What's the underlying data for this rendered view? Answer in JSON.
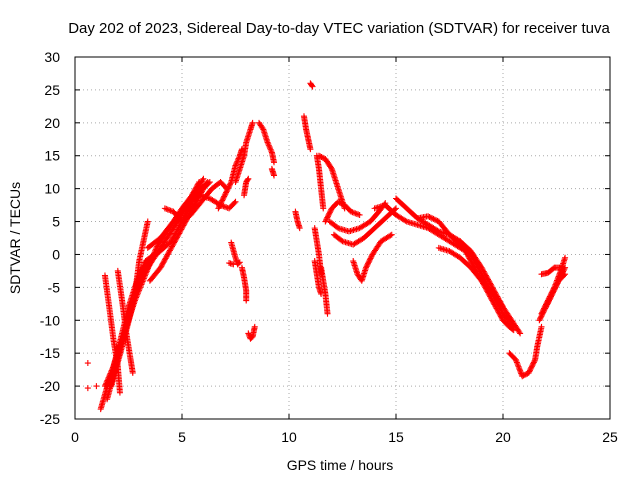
{
  "chart_data": {
    "type": "scatter",
    "title": "Day 202 of 2023, Sidereal Day-to-day VTEC variation (SDTVAR) for receiver tuva",
    "xlabel": "GPS time / hours",
    "ylabel": "SDTVAR / TECUs",
    "xlim": [
      0,
      25
    ],
    "ylim": [
      -25,
      30
    ],
    "xticks": [
      0,
      5,
      10,
      15,
      20,
      25
    ],
    "yticks": [
      -25,
      -20,
      -15,
      -10,
      -5,
      0,
      5,
      10,
      15,
      20,
      25,
      30
    ],
    "grid": true,
    "marker": "+",
    "color": "#ff0000",
    "tracks": [
      [
        [
          1.4,
          -3.2
        ],
        [
          1.6,
          -8
        ],
        [
          1.8,
          -13
        ],
        [
          2.0,
          -17
        ],
        [
          2.1,
          -21
        ]
      ],
      [
        [
          1.2,
          -23.5
        ],
        [
          1.6,
          -19
        ],
        [
          2.2,
          -13
        ],
        [
          2.8,
          -7
        ],
        [
          3.3,
          -3
        ],
        [
          3.8,
          1
        ],
        [
          4.4,
          4
        ],
        [
          5.0,
          7
        ],
        [
          5.6,
          9.5
        ],
        [
          6.0,
          11.5
        ]
      ],
      [
        [
          1.5,
          -22
        ],
        [
          2.0,
          -16
        ],
        [
          2.4,
          -11
        ],
        [
          2.8,
          -6
        ],
        [
          3.2,
          -2
        ],
        [
          3.8,
          0
        ],
        [
          4.5,
          2
        ],
        [
          5.0,
          5
        ],
        [
          5.6,
          9
        ],
        [
          6.2,
          11
        ]
      ],
      [
        [
          1.7,
          -20
        ],
        [
          2.2,
          -14
        ],
        [
          2.6,
          -9
        ],
        [
          3.0,
          -4
        ],
        [
          3.6,
          -1
        ],
        [
          4.2,
          2
        ],
        [
          4.8,
          5
        ],
        [
          5.3,
          8
        ],
        [
          5.8,
          11
        ]
      ],
      [
        [
          1.4,
          -20
        ],
        [
          1.8,
          -17
        ],
        [
          2.2,
          -12
        ],
        [
          2.5,
          -8
        ],
        [
          2.9,
          -4
        ],
        [
          3.3,
          -1
        ],
        [
          3.7,
          0
        ]
      ],
      [
        [
          2.0,
          -2.5
        ],
        [
          2.2,
          -7
        ],
        [
          2.4,
          -12
        ],
        [
          2.6,
          -16
        ],
        [
          2.7,
          -18
        ]
      ],
      [
        [
          2.8,
          -6
        ],
        [
          3.0,
          -1
        ],
        [
          3.2,
          2
        ],
        [
          3.4,
          5
        ]
      ],
      [
        [
          3.5,
          -4
        ],
        [
          4.0,
          -2
        ],
        [
          4.5,
          1
        ],
        [
          5.0,
          4
        ],
        [
          5.5,
          7
        ],
        [
          6.0,
          10
        ],
        [
          6.3,
          11
        ]
      ],
      [
        [
          4.2,
          7
        ],
        [
          4.6,
          6.5
        ],
        [
          5.0,
          5
        ],
        [
          5.4,
          6
        ],
        [
          5.9,
          8
        ],
        [
          6.4,
          10
        ],
        [
          6.8,
          11
        ],
        [
          7.1,
          10
        ]
      ],
      [
        [
          3.4,
          1
        ],
        [
          4.0,
          2.5
        ],
        [
          4.6,
          5
        ],
        [
          5.2,
          7.5
        ],
        [
          5.8,
          9
        ],
        [
          6.3,
          8.5
        ],
        [
          6.8,
          7.5
        ],
        [
          7.2,
          7
        ],
        [
          7.5,
          8
        ]
      ],
      [
        [
          7.5,
          11
        ],
        [
          7.7,
          13
        ],
        [
          7.9,
          15
        ],
        [
          8.0,
          17
        ],
        [
          8.2,
          19
        ],
        [
          8.3,
          20
        ]
      ],
      [
        [
          6.7,
          7
        ],
        [
          7.0,
          9
        ],
        [
          7.3,
          11
        ],
        [
          7.5,
          13.5
        ],
        [
          7.7,
          15
        ],
        [
          7.8,
          16
        ]
      ],
      [
        [
          7.9,
          9
        ],
        [
          8.0,
          11
        ],
        [
          8.1,
          11.5
        ]
      ],
      [
        [
          7.3,
          1.8
        ],
        [
          7.5,
          -0.5
        ],
        [
          7.6,
          -1.5
        ],
        [
          7.7,
          -1.2
        ]
      ],
      [
        [
          7.8,
          -2
        ],
        [
          7.9,
          -3.5
        ],
        [
          8.0,
          -5.5
        ],
        [
          8.0,
          -7
        ]
      ],
      [
        [
          7.2,
          -1.3
        ],
        [
          7.4,
          -1.5
        ]
      ],
      [
        [
          8.1,
          -12
        ],
        [
          8.2,
          -12.8
        ],
        [
          8.3,
          -12.5
        ],
        [
          8.4,
          -11
        ]
      ],
      [
        [
          8.6,
          20
        ],
        [
          8.8,
          19
        ],
        [
          9.0,
          17
        ],
        [
          9.2,
          15.5
        ],
        [
          9.3,
          14
        ]
      ],
      [
        [
          9.2,
          13
        ],
        [
          9.3,
          12
        ]
      ],
      [
        [
          10.3,
          6.5
        ],
        [
          10.4,
          5
        ],
        [
          10.5,
          4
        ]
      ],
      [
        [
          10.7,
          21
        ],
        [
          10.8,
          19
        ],
        [
          10.9,
          17.5
        ],
        [
          11.0,
          16
        ]
      ],
      [
        [
          11.0,
          26
        ],
        [
          11.1,
          25.5
        ]
      ],
      [
        [
          11.3,
          15
        ],
        [
          11.4,
          13
        ],
        [
          11.5,
          10
        ],
        [
          11.6,
          7
        ]
      ],
      [
        [
          11.2,
          4
        ],
        [
          11.3,
          2
        ],
        [
          11.4,
          0
        ],
        [
          11.5,
          -3
        ]
      ],
      [
        [
          11.5,
          -2
        ],
        [
          11.6,
          -4
        ],
        [
          11.7,
          -6
        ],
        [
          11.8,
          -9
        ]
      ],
      [
        [
          11.2,
          -1
        ],
        [
          11.3,
          -3
        ],
        [
          11.4,
          -5
        ],
        [
          11.5,
          -6
        ]
      ],
      [
        [
          11.4,
          15
        ],
        [
          11.7,
          14.5
        ],
        [
          12.0,
          13
        ],
        [
          12.2,
          11
        ],
        [
          12.4,
          9
        ],
        [
          12.6,
          7
        ]
      ],
      [
        [
          11.7,
          5
        ],
        [
          12.0,
          7
        ],
        [
          12.3,
          8
        ],
        [
          12.6,
          7.5
        ],
        [
          12.9,
          6.5
        ],
        [
          13.3,
          6
        ]
      ],
      [
        [
          11.9,
          5
        ],
        [
          12.3,
          4
        ],
        [
          12.8,
          3.5
        ],
        [
          13.3,
          4
        ],
        [
          13.8,
          5
        ],
        [
          14.2,
          6.5
        ],
        [
          14.5,
          7.8
        ]
      ],
      [
        [
          12.1,
          3
        ],
        [
          12.5,
          2
        ],
        [
          13.0,
          1.5
        ],
        [
          13.5,
          2.5
        ],
        [
          14.0,
          4
        ],
        [
          14.5,
          5.5
        ],
        [
          15.0,
          7
        ]
      ],
      [
        [
          13.0,
          -1
        ],
        [
          13.2,
          -3
        ],
        [
          13.4,
          -4
        ],
        [
          13.6,
          -2
        ],
        [
          13.9,
          0
        ],
        [
          14.3,
          2
        ],
        [
          14.8,
          3
        ]
      ],
      [
        [
          14.0,
          7
        ],
        [
          14.5,
          7.5
        ],
        [
          15.0,
          6
        ],
        [
          15.5,
          5
        ],
        [
          16.0,
          4.5
        ],
        [
          16.5,
          4
        ],
        [
          17.0,
          3
        ],
        [
          17.5,
          2
        ],
        [
          18.0,
          1
        ],
        [
          18.5,
          0
        ]
      ],
      [
        [
          15.0,
          8.5
        ],
        [
          15.5,
          7
        ],
        [
          16.0,
          5.5
        ],
        [
          16.5,
          4.5
        ],
        [
          17.0,
          3.5
        ],
        [
          17.5,
          3
        ],
        [
          18.0,
          2
        ],
        [
          18.5,
          0.5
        ],
        [
          19.0,
          -2
        ],
        [
          19.5,
          -5
        ],
        [
          20.0,
          -8
        ],
        [
          20.4,
          -10
        ],
        [
          20.8,
          -12
        ]
      ],
      [
        [
          16.0,
          5.5
        ],
        [
          16.5,
          5.8
        ],
        [
          17.0,
          5
        ],
        [
          17.5,
          3
        ],
        [
          18.0,
          1.5
        ],
        [
          18.5,
          0
        ],
        [
          19.0,
          -3
        ],
        [
          19.5,
          -6
        ],
        [
          20.0,
          -9
        ],
        [
          20.5,
          -11
        ]
      ],
      [
        [
          17.0,
          1
        ],
        [
          17.5,
          0.5
        ],
        [
          18.0,
          -0.5
        ],
        [
          18.5,
          -2
        ],
        [
          19.0,
          -4
        ],
        [
          19.5,
          -7
        ],
        [
          20.0,
          -10
        ],
        [
          20.3,
          -11
        ],
        [
          20.5,
          -11.5
        ]
      ],
      [
        [
          18.0,
          2
        ],
        [
          18.5,
          -1
        ],
        [
          19.0,
          -4
        ],
        [
          19.4,
          -5.5
        ],
        [
          19.8,
          -7
        ],
        [
          20.0,
          -8
        ]
      ],
      [
        [
          20.3,
          -15
        ],
        [
          20.6,
          -16
        ],
        [
          20.9,
          -18.5
        ],
        [
          21.2,
          -18
        ],
        [
          21.5,
          -16
        ],
        [
          21.6,
          -14
        ],
        [
          21.8,
          -11
        ]
      ],
      [
        [
          21.7,
          -10
        ],
        [
          22.0,
          -8
        ],
        [
          22.3,
          -6
        ],
        [
          22.6,
          -4
        ],
        [
          22.9,
          -3
        ]
      ],
      [
        [
          21.8,
          -9
        ],
        [
          22.1,
          -7
        ],
        [
          22.4,
          -5
        ],
        [
          22.7,
          -2.5
        ],
        [
          22.9,
          -0.5
        ]
      ],
      [
        [
          22.0,
          -8
        ],
        [
          22.3,
          -6
        ],
        [
          22.6,
          -4
        ],
        [
          22.9,
          -2
        ]
      ],
      [
        [
          21.8,
          -3
        ],
        [
          22.1,
          -2.8
        ],
        [
          22.4,
          -2
        ],
        [
          22.7,
          -2
        ]
      ]
    ],
    "isolated_points": [
      [
        0.6,
        -16.5
      ],
      [
        0.6,
        -20.3
      ],
      [
        1.0,
        -20
      ]
    ]
  }
}
